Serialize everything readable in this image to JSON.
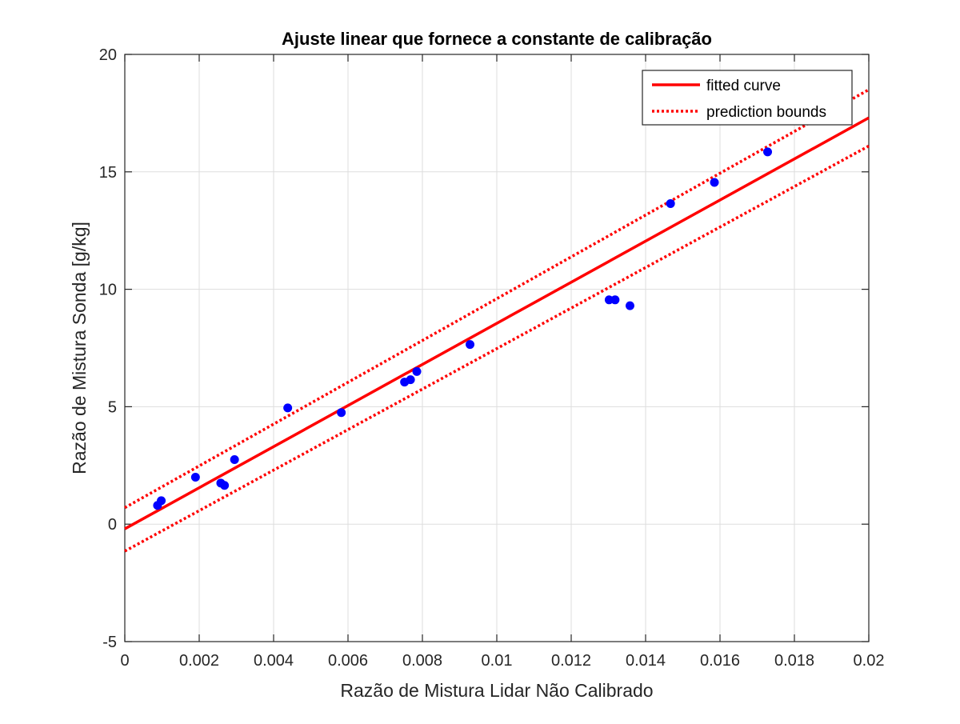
{
  "chart_data": {
    "type": "scatter",
    "title": "Ajuste linear que fornece a constante de calibração",
    "xlabel": "Razão de Mistura Lidar Não Calibrado",
    "ylabel": "Razão de Mistura Sonda [g/kg]",
    "xlim": [
      0,
      0.02
    ],
    "ylim": [
      -5,
      20
    ],
    "xticks": [
      0,
      0.002,
      0.004,
      0.006,
      0.008,
      0.01,
      0.012,
      0.014,
      0.016,
      0.018,
      0.02
    ],
    "xtick_labels": [
      "0",
      "0.002",
      "0.004",
      "0.006",
      "0.008",
      "0.01",
      "0.012",
      "0.014",
      "0.016",
      "0.018",
      "0.02"
    ],
    "yticks": [
      -5,
      0,
      5,
      10,
      15,
      20
    ],
    "ytick_labels": [
      "-5",
      "0",
      "5",
      "10",
      "15",
      "20"
    ],
    "grid": true,
    "legend_position": "top-right",
    "points": {
      "color": "#0000ff",
      "x": [
        0.00088,
        0.00098,
        0.0019,
        0.00258,
        0.00268,
        0.00295,
        0.00438,
        0.00582,
        0.00752,
        0.00768,
        0.00785,
        0.00928,
        0.01302,
        0.01318,
        0.01358,
        0.01467,
        0.01585,
        0.01728
      ],
      "y": [
        0.8,
        1.0,
        2.0,
        1.75,
        1.65,
        2.75,
        4.95,
        4.75,
        6.05,
        6.15,
        6.5,
        7.65,
        9.55,
        9.55,
        9.3,
        13.65,
        14.55,
        15.85
      ]
    },
    "series": [
      {
        "name": "fitted curve",
        "style": "solid",
        "color": "#ff0000",
        "x": [
          0,
          0.02
        ],
        "y": [
          -0.2,
          17.3
        ]
      },
      {
        "name": "prediction bounds",
        "style": "dotted",
        "color": "#ff0000",
        "x": [
          0,
          0.02
        ],
        "y": [
          0.7,
          18.5
        ]
      },
      {
        "name": "",
        "style": "dotted",
        "color": "#ff0000",
        "x": [
          0,
          0.02
        ],
        "y": [
          -1.15,
          16.1
        ]
      }
    ]
  }
}
